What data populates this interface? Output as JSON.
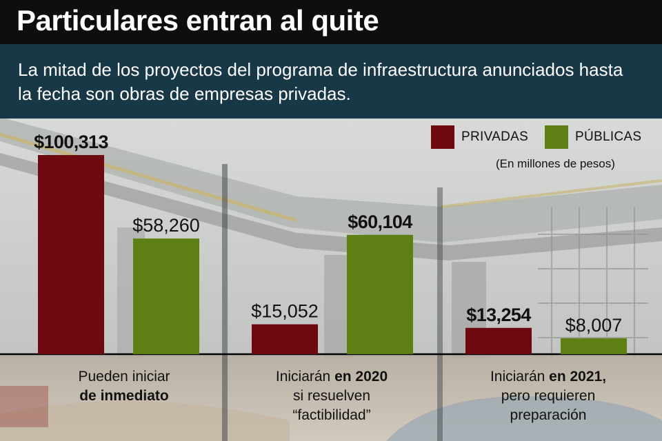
{
  "title": "Particulares entran al quite",
  "subtitle": "La mitad de los proyectos del programa de infraestructura anunciados hasta la fecha son obras de empresas privadas.",
  "legend": [
    {
      "label": "PRIVADAS",
      "color": "#6e0a0f"
    },
    {
      "label": "PÚBLICAS",
      "color": "#5d7f14"
    }
  ],
  "units_note": "(En millones de pesos)",
  "chart_data": {
    "type": "bar",
    "categories": [
      "Pueden iniciar de inmediato",
      "Iniciarán en 2020 si resuelven “factibilidad”",
      "Iniciarán en 2021, pero requieren preparación"
    ],
    "series": [
      {
        "name": "PRIVADAS",
        "color": "#6e0a0f",
        "values": [
          100313,
          15052,
          13254
        ],
        "labels": [
          "$100,313",
          "$15,052",
          "$13,254"
        ],
        "label_bold": [
          true,
          false,
          true
        ]
      },
      {
        "name": "PÚBLICAS",
        "color": "#5d7f14",
        "values": [
          58260,
          60104,
          8007
        ],
        "labels": [
          "$58,260",
          "$60,104",
          "$8,007"
        ],
        "label_bold": [
          false,
          true,
          false
        ]
      }
    ],
    "units": "millones de pesos",
    "ylim": [
      0,
      100313
    ],
    "legend_position": "top-right"
  },
  "categories_display": [
    {
      "line1": "Pueden iniciar",
      "line2_bold": "de inmediato",
      "line3": ""
    },
    {
      "line1_pre": "Iniciarán ",
      "line1_bold": "en 2020",
      "line2": "si resuelven",
      "line3": "“factibilidad”"
    },
    {
      "line1_pre": "Iniciarán ",
      "line1_bold": "en 2021,",
      "line2": "pero requieren",
      "line3": "preparación"
    }
  ]
}
